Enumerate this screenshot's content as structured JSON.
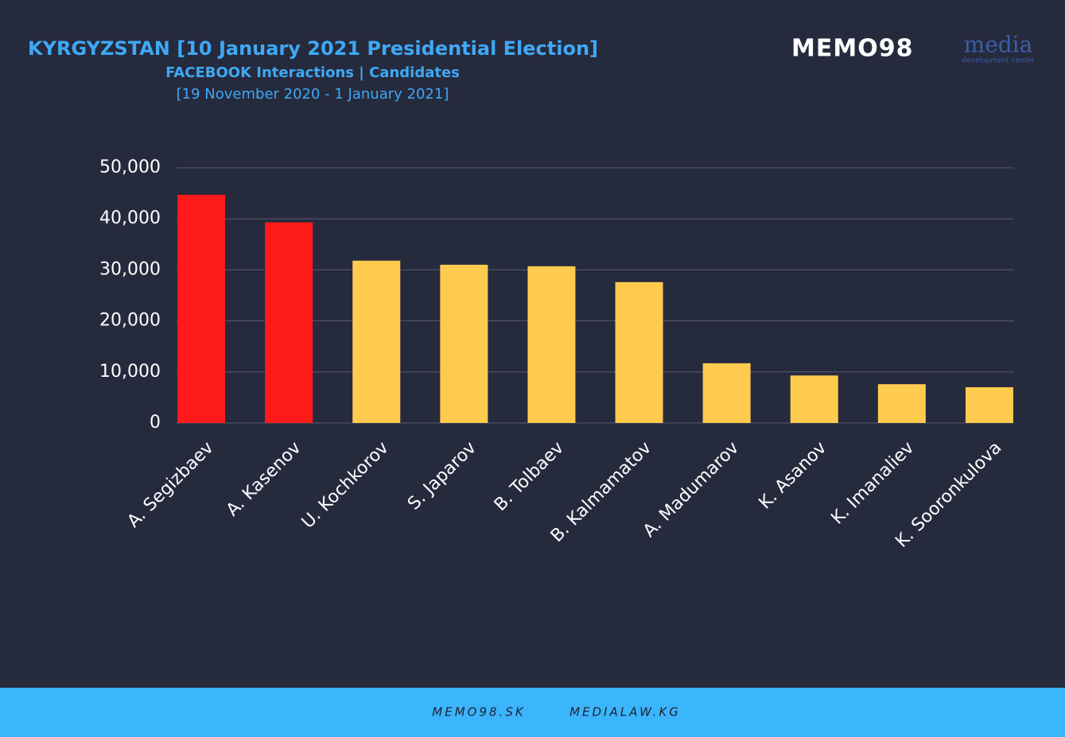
{
  "chart_data": {
    "type": "bar",
    "title": "KYRGYZSTAN [10 January 2021 Presidential Election]",
    "subtitle": "FACEBOOK Interactions | Candidates",
    "period": "[19 November 2020 - 1 January 2021]",
    "categories": [
      "A. Segizbaev",
      "A. Kasenov",
      "U. Kochkorov",
      "S. Japarov",
      "B. Tolbaev",
      "B. Kalmamatov",
      "A. Madumarov",
      "K. Asanov",
      "K. Imanaliev",
      "K. Sooronkulova"
    ],
    "values": [
      44700,
      39300,
      31800,
      31000,
      30700,
      27600,
      11700,
      9300,
      7600,
      7000
    ],
    "colors": [
      "#ff1a1a",
      "#ff1a1a",
      "#ffcb4f",
      "#ffcb4f",
      "#ffcb4f",
      "#ffcb4f",
      "#ffcb4f",
      "#ffcb4f",
      "#ffcb4f",
      "#ffcb4f"
    ],
    "ylim": [
      0,
      50000
    ],
    "yticks": [
      0,
      {
        "value": 10000,
        "label": "10,000"
      },
      {
        "value": 20000,
        "label": "20,000"
      },
      {
        "value": 30000,
        "label": "30,000"
      },
      {
        "value": 40000,
        "label": "40,000"
      },
      {
        "value": 50000,
        "label": "50,000"
      }
    ],
    "grid": true
  },
  "logos": {
    "memo": "MEMO98",
    "media": "media",
    "media_sub": "development center"
  },
  "footer": {
    "left": "MEMO98.SK",
    "right": "MEDIALAW.KG"
  }
}
